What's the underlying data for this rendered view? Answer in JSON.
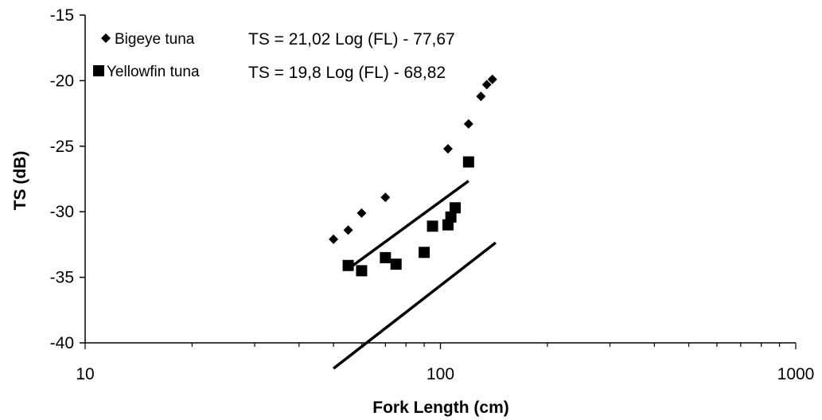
{
  "chart_data": {
    "type": "scatter",
    "x_scale": "log",
    "xlim": [
      10,
      1000
    ],
    "ylim": [
      -40,
      -15
    ],
    "xlabel": "Fork Length (cm)",
    "ylabel": "TS (dB)",
    "x_ticks": [
      10,
      100,
      1000
    ],
    "y_ticks": [
      -15,
      -20,
      -25,
      -30,
      -35,
      -40
    ],
    "x_tick_labels": [
      "10",
      "100",
      "1000"
    ],
    "y_tick_labels": [
      "-15",
      "-20",
      "-25",
      "-30",
      "-35",
      "-40"
    ],
    "grid": false,
    "legend_position": "top-left",
    "series": [
      {
        "name": "Bigeye tuna",
        "marker": "diamond",
        "color": "#000000",
        "equation": "TS = 21,02 Log (FL) - 77,67",
        "slope": 21.02,
        "intercept": -77.67,
        "fit_x_range": [
          50,
          143
        ],
        "points": [
          {
            "x": 50,
            "y": -32.1
          },
          {
            "x": 55,
            "y": -31.4
          },
          {
            "x": 60,
            "y": -30.1
          },
          {
            "x": 70,
            "y": -28.9
          },
          {
            "x": 105,
            "y": -25.2
          },
          {
            "x": 120,
            "y": -23.3
          },
          {
            "x": 130,
            "y": -21.2
          },
          {
            "x": 135,
            "y": -20.3
          },
          {
            "x": 140,
            "y": -19.9
          }
        ]
      },
      {
        "name": "Yellowfin tuna",
        "marker": "square",
        "color": "#000000",
        "equation": "TS = 19,8 Log (FL) - 68,82",
        "slope": 19.8,
        "intercept": -68.82,
        "fit_x_range": [
          55,
          120
        ],
        "points": [
          {
            "x": 55,
            "y": -34.1
          },
          {
            "x": 60,
            "y": -34.5
          },
          {
            "x": 70,
            "y": -33.5
          },
          {
            "x": 75,
            "y": -34.0
          },
          {
            "x": 90,
            "y": -33.1
          },
          {
            "x": 95,
            "y": -31.1
          },
          {
            "x": 105,
            "y": -31.0
          },
          {
            "x": 107,
            "y": -30.4
          },
          {
            "x": 110,
            "y": -29.7
          },
          {
            "x": 120,
            "y": -26.2
          }
        ]
      }
    ]
  }
}
